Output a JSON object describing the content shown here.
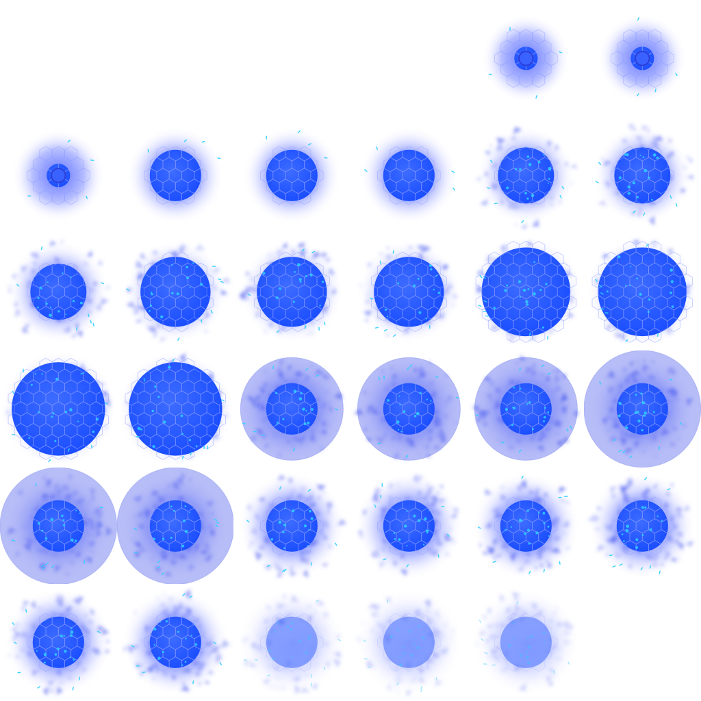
{
  "sprite_sheet": {
    "columns": 6,
    "rows": 6,
    "colors": {
      "core": "#1a4dff",
      "glow": "#5a6cff",
      "halo": "#c9ccff",
      "spark": "#2fd0ff",
      "hex_line": "#8fa0ff",
      "shockwave": "#7b86f0"
    },
    "frames": [
      {
        "slot": 0,
        "empty": true
      },
      {
        "slot": 1,
        "empty": true
      },
      {
        "slot": 2,
        "empty": true
      },
      {
        "slot": 3,
        "empty": true
      },
      {
        "slot": 4,
        "core": 0.1,
        "ring": 0.06,
        "glow": 0.38,
        "debris": 0,
        "shock": 0,
        "fade": 1.0
      },
      {
        "slot": 5,
        "core": 0.1,
        "ring": 0.06,
        "glow": 0.38,
        "debris": 0,
        "shock": 0,
        "fade": 1.0
      },
      {
        "slot": 6,
        "core": 0.1,
        "ring": 0.06,
        "glow": 0.4,
        "debris": 0,
        "shock": 0,
        "fade": 1.0
      },
      {
        "slot": 7,
        "core": 0.22,
        "ring": 0,
        "glow": 0.42,
        "debris": 0,
        "shock": 0,
        "fade": 1.0
      },
      {
        "slot": 8,
        "core": 0.22,
        "ring": 0,
        "glow": 0.42,
        "debris": 0,
        "shock": 0,
        "fade": 1.0
      },
      {
        "slot": 9,
        "core": 0.22,
        "ring": 0,
        "glow": 0.42,
        "debris": 0,
        "shock": 0,
        "fade": 1.0
      },
      {
        "slot": 10,
        "core": 0.24,
        "ring": 0,
        "glow": 0.42,
        "debris": 0.6,
        "shock": 0,
        "fade": 1.0
      },
      {
        "slot": 11,
        "core": 0.24,
        "ring": 0,
        "glow": 0.42,
        "debris": 0.6,
        "shock": 0,
        "fade": 1.0
      },
      {
        "slot": 12,
        "core": 0.24,
        "ring": 0,
        "glow": 0.44,
        "debris": 0.8,
        "shock": 0,
        "fade": 1.0
      },
      {
        "slot": 13,
        "core": 0.3,
        "ring": 0,
        "glow": 0.44,
        "debris": 0.8,
        "shock": 0,
        "fade": 1.0
      },
      {
        "slot": 14,
        "core": 0.3,
        "ring": 0,
        "glow": 0.44,
        "debris": 0.8,
        "shock": 0,
        "fade": 1.0
      },
      {
        "slot": 15,
        "core": 0.3,
        "ring": 0,
        "glow": 0.44,
        "debris": 0.8,
        "shock": 0,
        "fade": 1.0
      },
      {
        "slot": 16,
        "core": 0.38,
        "ring": 0,
        "glow": 0.48,
        "debris": 0.9,
        "shock": 0,
        "fade": 1.0
      },
      {
        "slot": 17,
        "core": 0.38,
        "ring": 0,
        "glow": 0.48,
        "debris": 0.9,
        "shock": 0,
        "fade": 1.0
      },
      {
        "slot": 18,
        "core": 0.4,
        "ring": 0,
        "glow": 0.5,
        "debris": 1.0,
        "shock": 0,
        "fade": 1.0
      },
      {
        "slot": 19,
        "core": 0.4,
        "ring": 0,
        "glow": 0.5,
        "debris": 1.0,
        "shock": 0,
        "fade": 1.0
      },
      {
        "slot": 20,
        "core": 0.22,
        "ring": 0,
        "glow": 0.46,
        "debris": 1.0,
        "shock": 0.44,
        "fade": 1.0
      },
      {
        "slot": 21,
        "core": 0.22,
        "ring": 0,
        "glow": 0.46,
        "debris": 1.0,
        "shock": 0.44,
        "fade": 1.0
      },
      {
        "slot": 22,
        "core": 0.22,
        "ring": 0,
        "glow": 0.46,
        "debris": 1.0,
        "shock": 0.44,
        "fade": 1.0
      },
      {
        "slot": 23,
        "core": 0.22,
        "ring": 0,
        "glow": 0.46,
        "debris": 1.0,
        "shock": 0.5,
        "fade": 1.0
      },
      {
        "slot": 24,
        "core": 0.22,
        "ring": 0,
        "glow": 0.46,
        "debris": 1.0,
        "shock": 0.5,
        "fade": 1.0
      },
      {
        "slot": 25,
        "core": 0.22,
        "ring": 0,
        "glow": 0.46,
        "debris": 1.0,
        "shock": 0.5,
        "fade": 1.0
      },
      {
        "slot": 26,
        "core": 0.22,
        "ring": 0,
        "glow": 0.46,
        "debris": 1.0,
        "shock": 0,
        "fade": 1.0
      },
      {
        "slot": 27,
        "core": 0.22,
        "ring": 0,
        "glow": 0.46,
        "debris": 1.0,
        "shock": 0,
        "fade": 1.0
      },
      {
        "slot": 28,
        "core": 0.22,
        "ring": 0,
        "glow": 0.46,
        "debris": 1.0,
        "shock": 0,
        "fade": 1.0
      },
      {
        "slot": 29,
        "core": 0.22,
        "ring": 0,
        "glow": 0.46,
        "debris": 1.0,
        "shock": 0,
        "fade": 1.0
      },
      {
        "slot": 30,
        "core": 0.22,
        "ring": 0,
        "glow": 0.46,
        "debris": 1.0,
        "shock": 0,
        "fade": 1.0
      },
      {
        "slot": 31,
        "core": 0.22,
        "ring": 0,
        "glow": 0.46,
        "debris": 1.0,
        "shock": 0,
        "fade": 1.0
      },
      {
        "slot": 32,
        "core": 0.22,
        "ring": 0,
        "glow": 0.46,
        "debris": 0.9,
        "shock": 0,
        "fade": 0.45
      },
      {
        "slot": 33,
        "core": 0.22,
        "ring": 0,
        "glow": 0.46,
        "debris": 0.9,
        "shock": 0,
        "fade": 0.45
      },
      {
        "slot": 34,
        "core": 0.22,
        "ring": 0,
        "glow": 0.46,
        "debris": 0.9,
        "shock": 0,
        "fade": 0.45
      },
      {
        "slot": 35,
        "empty": true
      }
    ]
  }
}
